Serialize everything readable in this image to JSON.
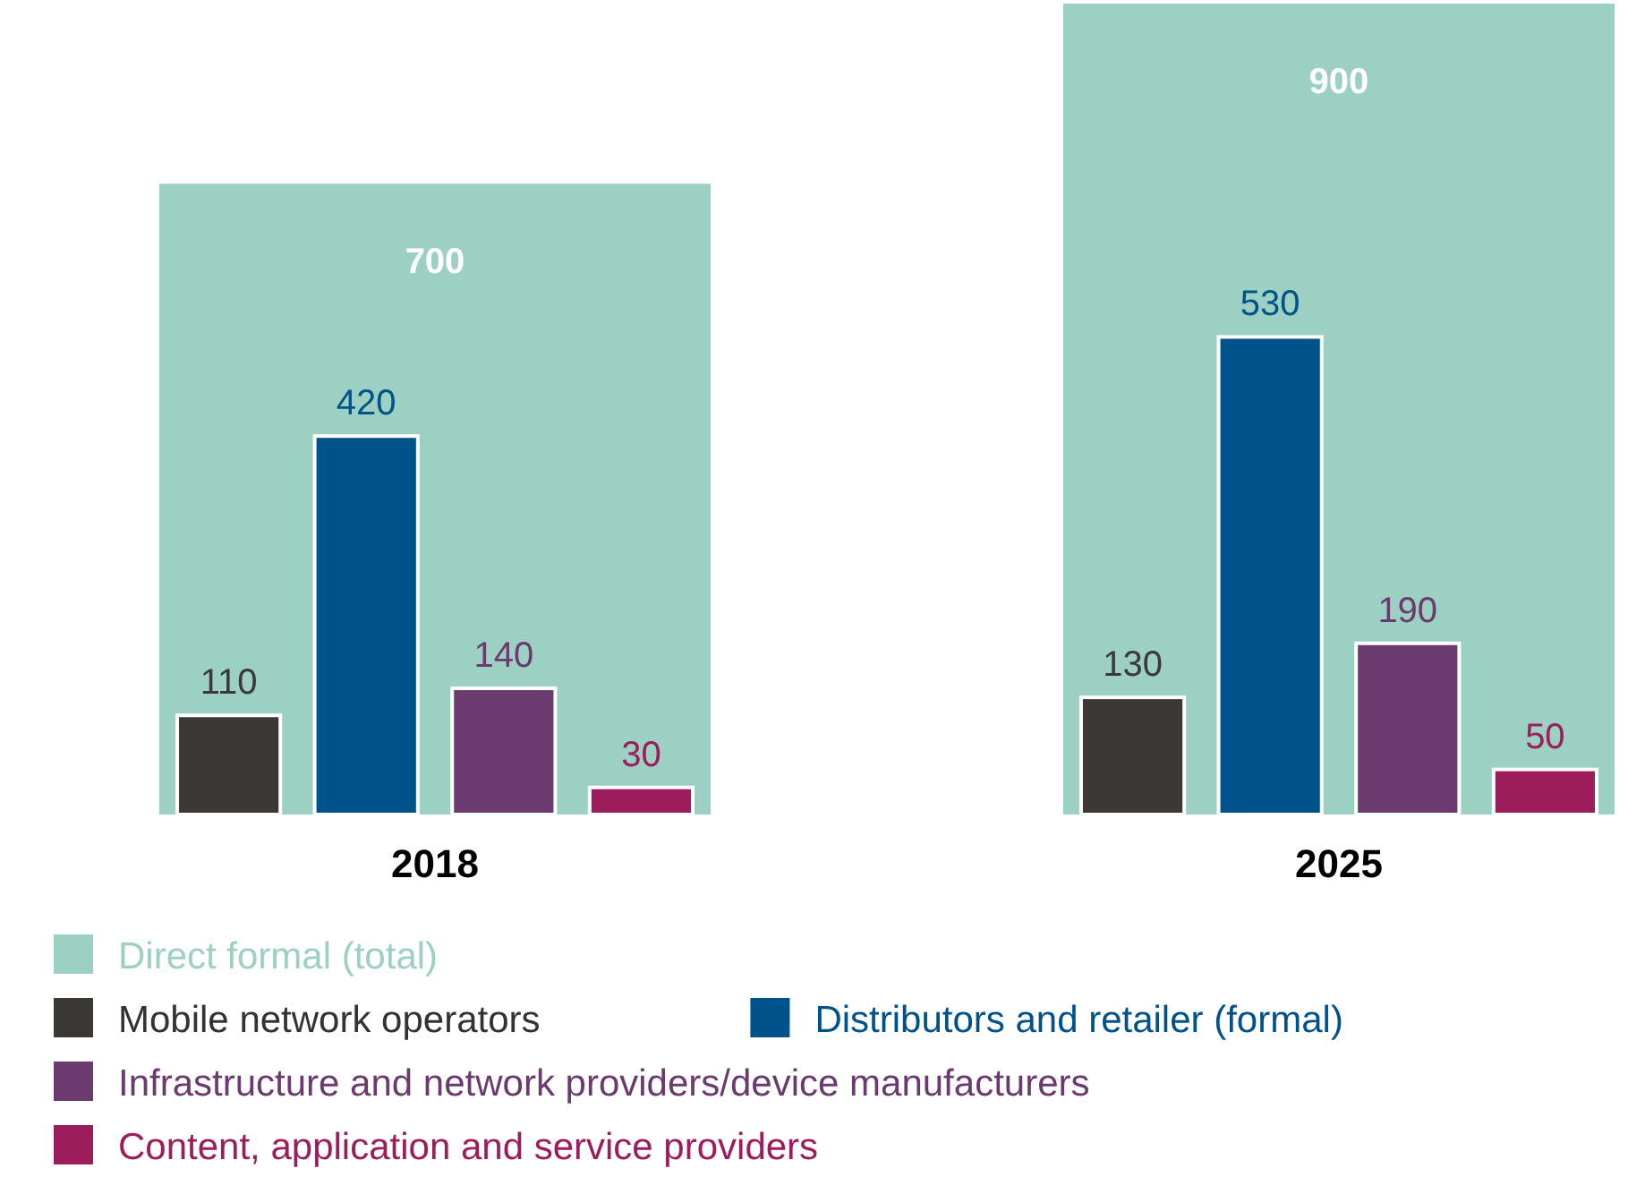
{
  "chart_data": {
    "type": "bar",
    "categories": [
      "2018",
      "2025"
    ],
    "series": [
      {
        "name": "Direct formal (total)",
        "color": "#9bd0c2",
        "values": [
          700,
          900
        ]
      },
      {
        "name": "Mobile network operators",
        "color": "#3b3835",
        "values": [
          110,
          130
        ]
      },
      {
        "name": "Distributors and retailer (formal)",
        "color": "#00528a",
        "values": [
          420,
          530
        ]
      },
      {
        "name": "Infrastructure and network providers/device manufacturers",
        "color": "#6b3a6e",
        "values": [
          140,
          190
        ]
      },
      {
        "name": "Content, application and service providers",
        "color": "#9c1c5c",
        "values": [
          30,
          50
        ]
      }
    ],
    "data_labels": true,
    "legend": "bottom"
  }
}
